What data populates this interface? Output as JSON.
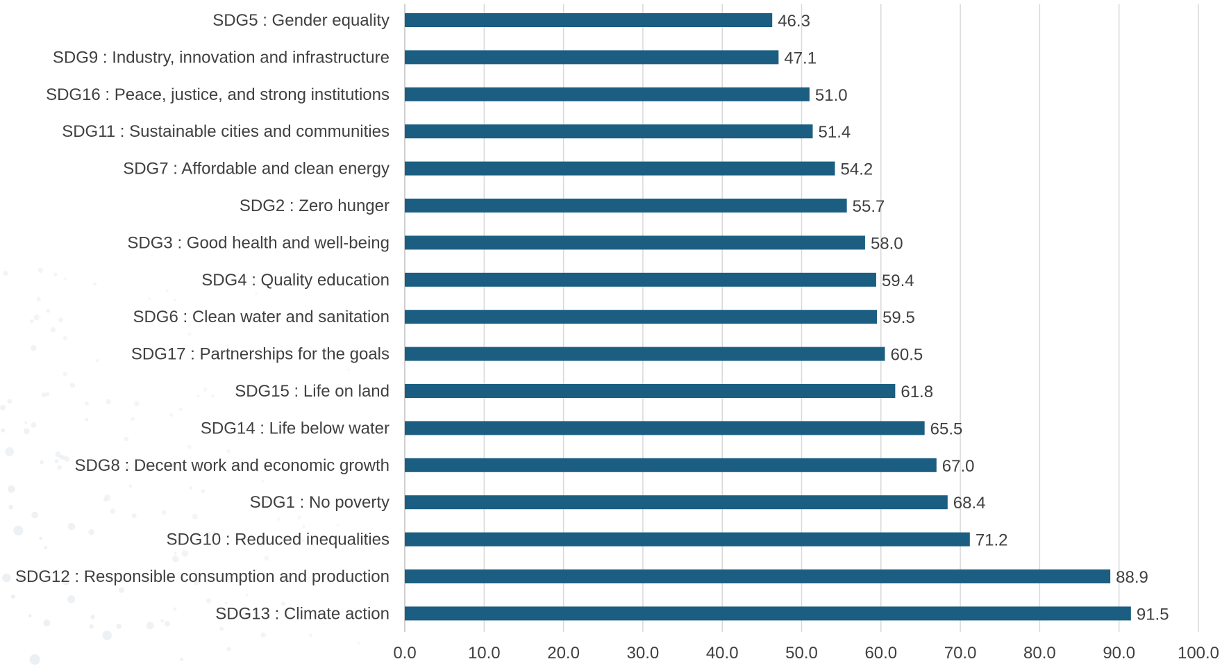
{
  "chart_data": {
    "type": "bar",
    "orientation": "horizontal",
    "categories": [
      "SDG5 : Gender equality",
      "SDG9 : Industry, innovation and infrastructure",
      "SDG16 : Peace, justice, and strong institutions",
      "SDG11 : Sustainable cities and communities",
      "SDG7 : Affordable and clean energy",
      "SDG2 : Zero hunger",
      "SDG3 : Good health and well-being",
      "SDG4 : Quality education",
      "SDG6 : Clean water and sanitation",
      "SDG17 : Partnerships for the goals",
      "SDG15 : Life on land",
      "SDG14 : Life below water",
      "SDG8 : Decent work and economic growth",
      "SDG1 : No poverty",
      "SDG10 : Reduced inequalities",
      "SDG12 : Responsible consumption and production",
      "SDG13 : Climate action"
    ],
    "values": [
      46.3,
      47.1,
      51.0,
      51.4,
      54.2,
      55.7,
      58.0,
      59.4,
      59.5,
      60.5,
      61.8,
      65.5,
      67.0,
      68.4,
      71.2,
      88.9,
      91.5
    ],
    "value_labels": [
      "46.3",
      "47.1",
      "51.0",
      "51.4",
      "54.2",
      "55.7",
      "58.0",
      "59.4",
      "59.5",
      "60.5",
      "61.8",
      "65.5",
      "67.0",
      "68.4",
      "71.2",
      "88.9",
      "91.5"
    ],
    "xlim": [
      0,
      100
    ],
    "x_ticks": [
      "0.0",
      "10.0",
      "20.0",
      "30.0",
      "40.0",
      "50.0",
      "60.0",
      "70.0",
      "80.0",
      "90.0",
      "100.0"
    ],
    "grid": "vertical",
    "legend": "none",
    "title": "",
    "xlabel": "",
    "ylabel": "",
    "colors": {
      "bar": "#1b5e82",
      "text": "#404040",
      "grid": "#d9d9d9"
    }
  }
}
